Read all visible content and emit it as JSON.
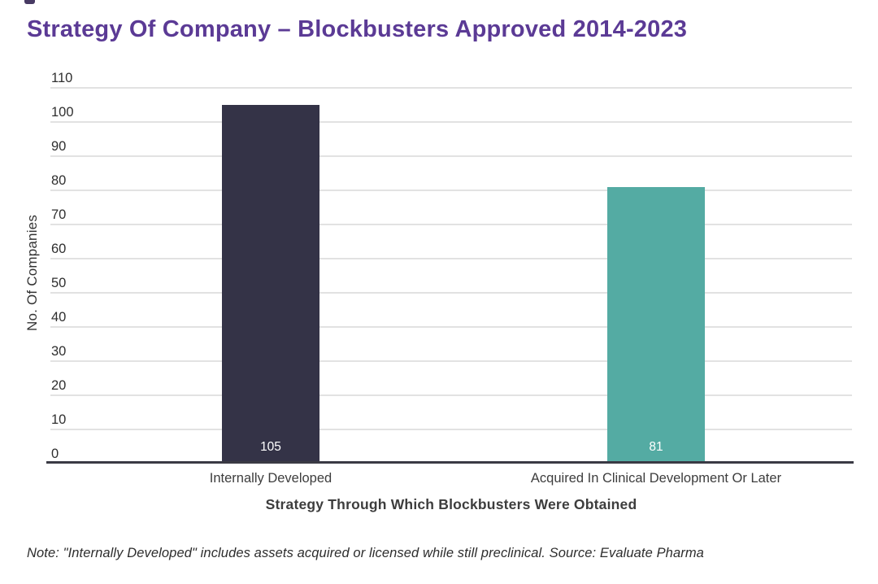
{
  "title": "Strategy Of Company – Blockbusters Approved 2014-2023",
  "note": "Note: \"Internally Developed\" includes assets acquired or licensed while still preclinical. Source: Evaluate Pharma",
  "colors": {
    "title": "#5B3A95",
    "bar_internally_developed": "#343347",
    "bar_acquired": "#54ABA3",
    "gridline": "#E2E2E2",
    "axis_line": "#3A3A44",
    "axis_text": "#2F2F2F",
    "value_label_text": "#FFFFFF"
  },
  "chart_data": {
    "type": "bar",
    "title": "Strategy Of Company – Blockbusters Approved 2014-2023",
    "categories": [
      "Internally Developed",
      "Acquired In Clinical Development Or Later"
    ],
    "values": [
      105,
      81
    ],
    "value_labels": [
      "105",
      "81"
    ],
    "bar_colors": [
      "#343347",
      "#54ABA3"
    ],
    "xlabel": "Strategy Through Which Blockbusters Were Obtained",
    "ylabel": "No. Of Companies",
    "ylim": [
      0,
      110
    ],
    "yticks": [
      0,
      10,
      20,
      30,
      40,
      50,
      60,
      70,
      80,
      90,
      100,
      110
    ],
    "grid": "horizontal",
    "legend": "none",
    "value_labels_position": "inside-bottom"
  }
}
